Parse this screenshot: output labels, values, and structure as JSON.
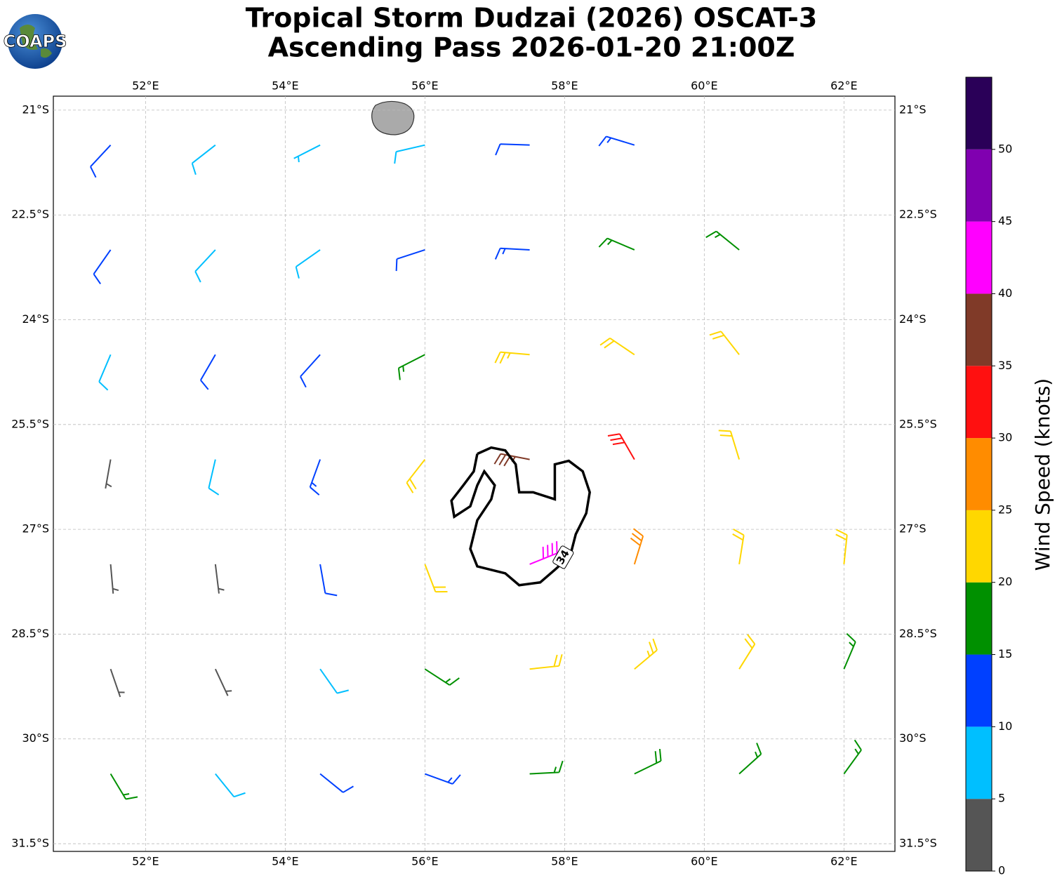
{
  "chart_data": {
    "type": "wind_barbs",
    "title": [
      "Tropical Storm Dudzai (2026) OSCAT-3",
      "Ascending Pass 2026-01-20 21:00Z"
    ],
    "logo_text": "COAPS",
    "xlim": [
      50.68,
      62.73
    ],
    "ylim": [
      -31.61,
      -20.8
    ],
    "xticks": [
      {
        "value": 52,
        "label": "52°E"
      },
      {
        "value": 54,
        "label": "54°E"
      },
      {
        "value": 56,
        "label": "56°E"
      },
      {
        "value": 58,
        "label": "58°E"
      },
      {
        "value": 60,
        "label": "60°E"
      },
      {
        "value": 62,
        "label": "62°E"
      }
    ],
    "yticks": [
      {
        "value": -21,
        "label": "21°S"
      },
      {
        "value": -22.5,
        "label": "22.5°S"
      },
      {
        "value": -24,
        "label": "24°S"
      },
      {
        "value": -25.5,
        "label": "25.5°S"
      },
      {
        "value": -27,
        "label": "27°S"
      },
      {
        "value": -28.5,
        "label": "28.5°S"
      },
      {
        "value": -30,
        "label": "30°S"
      },
      {
        "value": -31.5,
        "label": "31.5°S"
      }
    ],
    "grid": true,
    "wind_barbs": [
      [
        51.5,
        -21.5,
        10,
        223
      ],
      [
        53,
        -21.5,
        8,
        232
      ],
      [
        54.5,
        -21.5,
        7,
        243
      ],
      [
        56,
        -21.5,
        8,
        257
      ],
      [
        57.5,
        -21.5,
        11,
        272
      ],
      [
        59,
        -21.5,
        13,
        287
      ],
      [
        51.5,
        -23,
        12,
        215
      ],
      [
        53,
        -23,
        9,
        223
      ],
      [
        54.5,
        -23,
        8,
        235
      ],
      [
        56,
        -23,
        11,
        252
      ],
      [
        57.5,
        -23,
        14,
        273
      ],
      [
        59,
        -23,
        17,
        293
      ],
      [
        60.5,
        -23,
        17,
        309
      ],
      [
        51.5,
        -24.5,
        9,
        203
      ],
      [
        53,
        -24.5,
        10,
        210
      ],
      [
        54.5,
        -24.5,
        12,
        222
      ],
      [
        56,
        -24.5,
        17,
        243
      ],
      [
        57.5,
        -24.5,
        24,
        275
      ],
      [
        59,
        -24.5,
        22,
        304
      ],
      [
        60.5,
        -24.5,
        20,
        322
      ],
      [
        51.5,
        -26,
        3,
        190
      ],
      [
        53,
        -26,
        8,
        193
      ],
      [
        54.5,
        -26,
        13,
        200
      ],
      [
        56,
        -26,
        22,
        218
      ],
      [
        57.5,
        -26,
        37,
        281
      ],
      [
        59,
        -26,
        30,
        330
      ],
      [
        60.5,
        -26,
        22,
        343
      ],
      [
        51.5,
        -27.5,
        3,
        175
      ],
      [
        53,
        -27.5,
        4,
        173
      ],
      [
        54.5,
        -27.5,
        11,
        170
      ],
      [
        56,
        -27.5,
        20,
        159
      ],
      [
        57.5,
        -27.5,
        40,
        68
      ],
      [
        59,
        -27.5,
        28,
        17
      ],
      [
        60.5,
        -27.5,
        22,
        9
      ],
      [
        62,
        -27.5,
        20,
        6
      ],
      [
        51.5,
        -29,
        3,
        161
      ],
      [
        53,
        -29,
        4,
        155
      ],
      [
        54.5,
        -29,
        9,
        145
      ],
      [
        56,
        -29,
        15,
        123
      ],
      [
        57.5,
        -29,
        22,
        84
      ],
      [
        59,
        -29,
        24,
        50
      ],
      [
        60.5,
        -29,
        20,
        32
      ],
      [
        62,
        -29,
        17,
        23
      ],
      [
        51.5,
        -30.5,
        15,
        149
      ],
      [
        53,
        -30.5,
        8,
        141
      ],
      [
        54.5,
        -30.5,
        12,
        129
      ],
      [
        56,
        -30.5,
        14,
        110
      ],
      [
        57.5,
        -30.5,
        17,
        87
      ],
      [
        59,
        -30.5,
        18,
        64
      ],
      [
        60.5,
        -30.5,
        17,
        48
      ],
      [
        62,
        -30.5,
        16,
        36
      ]
    ],
    "contour": {
      "level": 34,
      "color": "#000000",
      "path": [
        [
          56.75,
          -25.92
        ],
        [
          56.95,
          -25.83
        ],
        [
          57.15,
          -25.87
        ],
        [
          57.3,
          -26.07
        ],
        [
          57.35,
          -26.47
        ],
        [
          57.55,
          -26.47
        ],
        [
          57.86,
          -26.57
        ],
        [
          57.86,
          -26.07
        ],
        [
          58.06,
          -26.02
        ],
        [
          58.26,
          -26.17
        ],
        [
          58.36,
          -26.47
        ],
        [
          58.31,
          -26.77
        ],
        [
          58.16,
          -27.07
        ],
        [
          58.08,
          -27.38
        ],
        [
          57.86,
          -27.58
        ],
        [
          57.65,
          -27.76
        ],
        [
          57.35,
          -27.8
        ],
        [
          57.15,
          -27.63
        ],
        [
          56.75,
          -27.53
        ],
        [
          56.65,
          -27.28
        ],
        [
          56.75,
          -26.87
        ],
        [
          56.95,
          -26.57
        ],
        [
          57.0,
          -26.37
        ],
        [
          56.85,
          -26.17
        ],
        [
          56.75,
          -26.37
        ],
        [
          56.65,
          -26.67
        ],
        [
          56.42,
          -26.82
        ],
        [
          56.38,
          -26.59
        ],
        [
          56.55,
          -26.37
        ],
        [
          56.7,
          -26.17
        ],
        [
          56.75,
          -25.92
        ]
      ]
    },
    "colorbar": {
      "label": "Wind Speed (knots)",
      "bounds": [
        0,
        5,
        10,
        15,
        20,
        25,
        30,
        35,
        40,
        45,
        50,
        55
      ],
      "colors": [
        "#555555",
        "#00bfff",
        "#0040ff",
        "#009000",
        "#ffd700",
        "#ff8c00",
        "#ff1010",
        "#803a28",
        "#ff00ff",
        "#8000b0",
        "#2a0058"
      ],
      "ticks": [
        0,
        5,
        10,
        15,
        20,
        25,
        30,
        35,
        40,
        45,
        50
      ]
    }
  }
}
